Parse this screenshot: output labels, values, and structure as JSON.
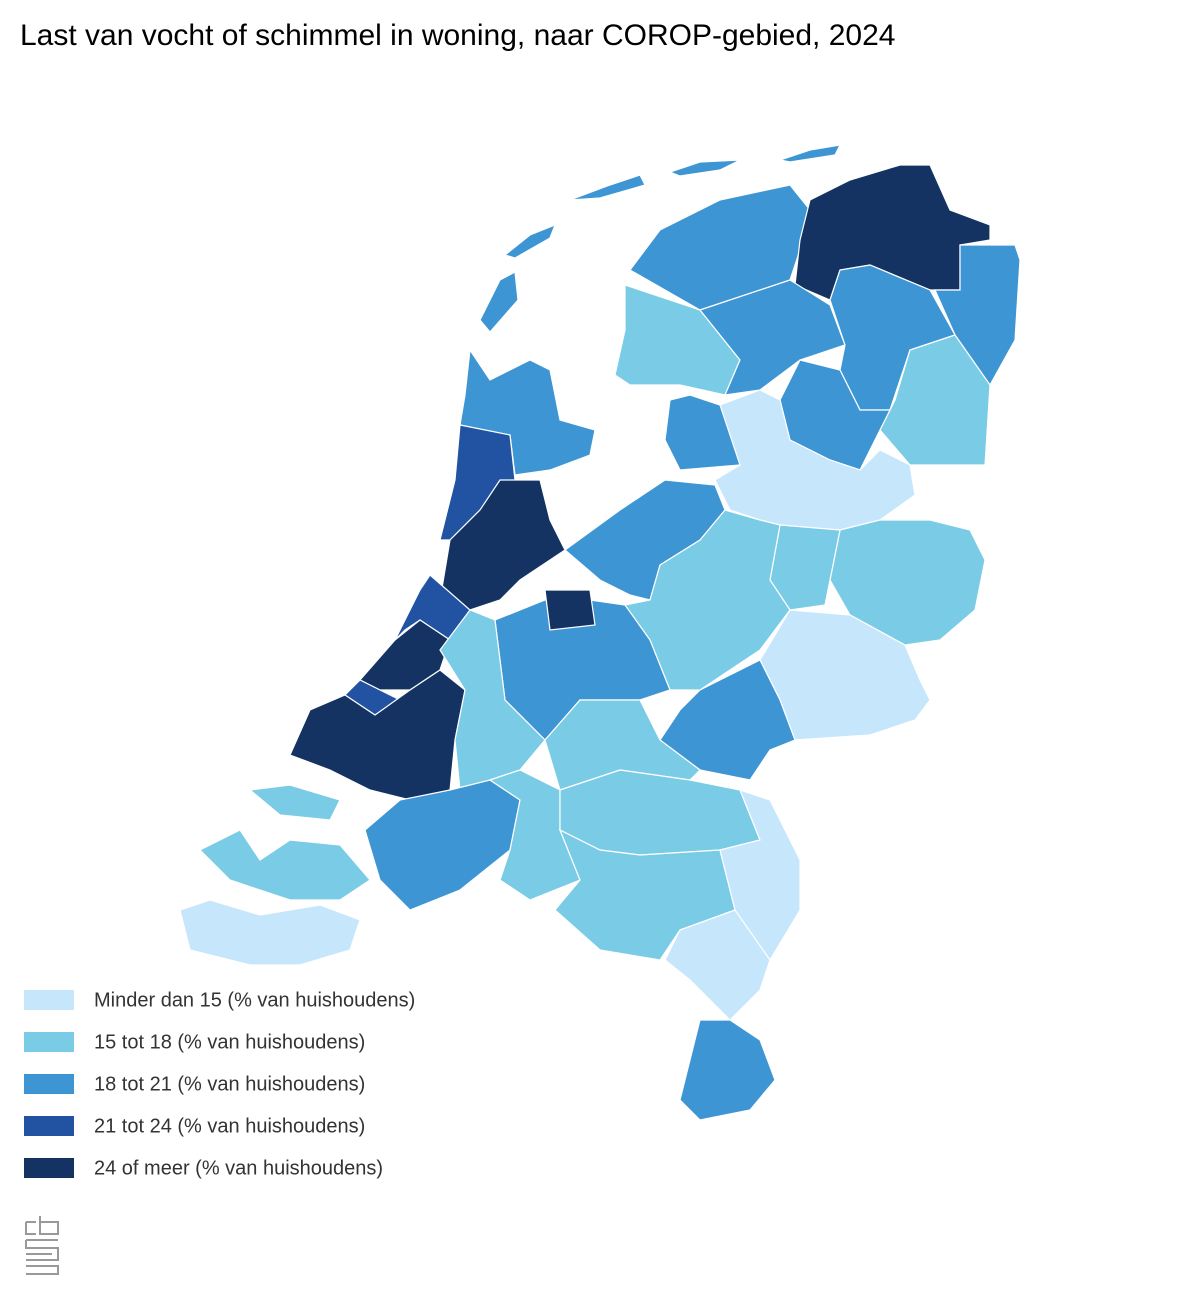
{
  "title": "Last van vocht of schimmel in woning, naar COROP-gebied, 2024",
  "legend": [
    {
      "label": "Minder dan 15 (% van huishoudens)",
      "color": "#c6e6fc"
    },
    {
      "label": "15 tot 18 (% van huishoudens)",
      "color": "#7acbe5"
    },
    {
      "label": "18 tot 21 (% van huishoudens)",
      "color": "#3e95d4"
    },
    {
      "label": "21 tot 24 (% van huishoudens)",
      "color": "#2253a2"
    },
    {
      "label": "24 of meer (% van huishoudens)",
      "color": "#143363"
    }
  ]
}
